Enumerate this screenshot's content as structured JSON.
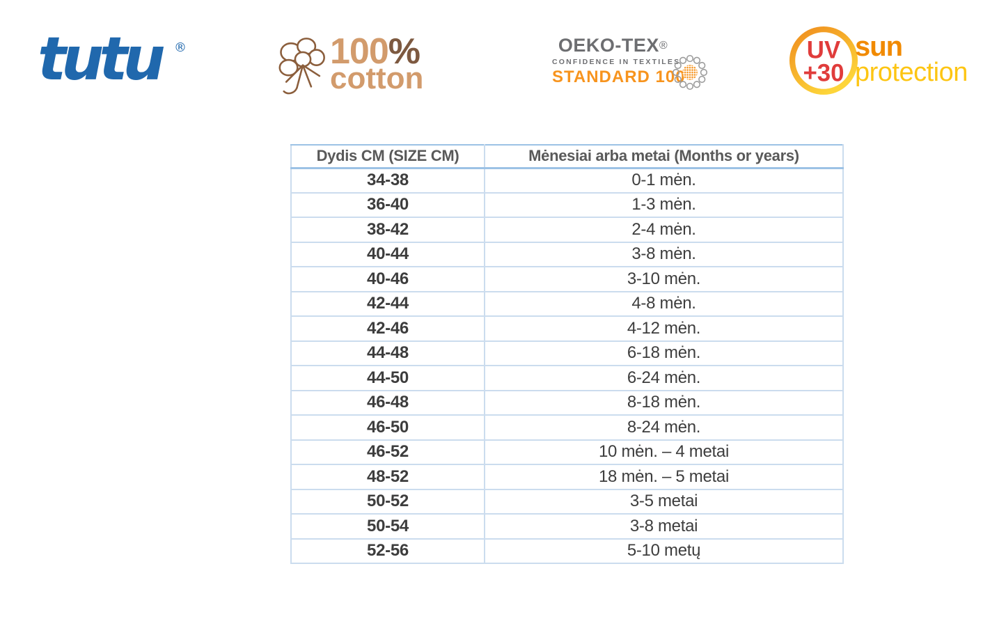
{
  "logos": {
    "tutu": {
      "text": "tutu",
      "registered": "®",
      "color": "#2068ad"
    },
    "cotton": {
      "line1": "100",
      "percent": "%",
      "line2": "cotton",
      "tan": "#d29b6c",
      "brown": "#7d5940"
    },
    "oeko": {
      "title": "OEKO-TEX",
      "registered": "®",
      "subtitle": "CONFIDENCE IN TEXTILES",
      "standard": "STANDARD 100",
      "gray": "#6d6e71",
      "orange": "#f7941e"
    },
    "uv": {
      "badge_line1": "UV",
      "badge_line2": "+30",
      "word1": "sun",
      "word2": "protection",
      "red": "#e03c3b",
      "orange": "#f18a00",
      "yellow": "#fdc513"
    }
  },
  "table": {
    "headers": [
      "Dydis CM (SIZE CM)",
      "Mėnesiai arba metai (Months or years)"
    ],
    "rows": [
      [
        "34-38",
        "0-1 mėn."
      ],
      [
        "36-40",
        "1-3 mėn."
      ],
      [
        "38-42",
        "2-4 mėn."
      ],
      [
        "40-44",
        "3-8 mėn."
      ],
      [
        "40-46",
        "3-10 mėn."
      ],
      [
        "42-44",
        "4-8 mėn."
      ],
      [
        "42-46",
        "4-12 mėn."
      ],
      [
        "44-48",
        "6-18 mėn."
      ],
      [
        "44-50",
        "6-24 mėn."
      ],
      [
        "46-48",
        "8-18 mėn."
      ],
      [
        "46-50",
        "8-24 mėn."
      ],
      [
        "46-52",
        "10 mėn. – 4 metai"
      ],
      [
        "48-52",
        "18 mėn. – 5 metai"
      ],
      [
        "50-52",
        "3-5 metai"
      ],
      [
        "50-54",
        "3-8 metai"
      ],
      [
        "52-56",
        "5-10 metų"
      ]
    ],
    "colors": {
      "accent_border": "#9cc2e5",
      "light_border": "#cbdcee",
      "header_text": "#595959",
      "body_text": "#3d3d3d"
    }
  }
}
